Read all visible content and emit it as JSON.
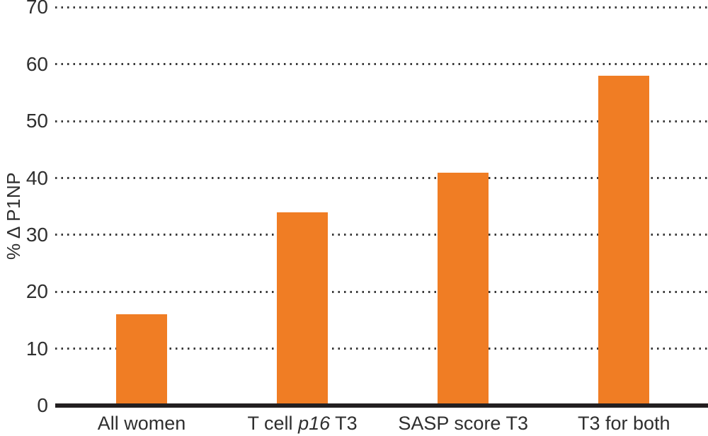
{
  "chart_data": {
    "type": "bar",
    "title": "",
    "xlabel": "",
    "ylabel": "% Δ P1NP",
    "ylim": [
      0,
      70
    ],
    "yticks": [
      0,
      10,
      20,
      30,
      40,
      50,
      60,
      70
    ],
    "grid": "horizontal dotted",
    "legend": "none",
    "categories": [
      "All women",
      "T cell p16 T3",
      "SASP score T3",
      "T3 for both"
    ],
    "categories_rich": [
      [
        {
          "t": "All women",
          "italic": false
        }
      ],
      [
        {
          "t": "T cell ",
          "italic": false
        },
        {
          "t": "p16",
          "italic": true
        },
        {
          "t": " T3",
          "italic": false
        }
      ],
      [
        {
          "t": "SASP score T3",
          "italic": false
        }
      ],
      [
        {
          "t": "T3 for both",
          "italic": false
        }
      ]
    ],
    "values": [
      16,
      34,
      41,
      58
    ],
    "colors": {
      "bar": "#F07D24",
      "axis": "#231F20",
      "grid_dots": "#3A3A3A",
      "text": "#2F2F2F"
    }
  }
}
